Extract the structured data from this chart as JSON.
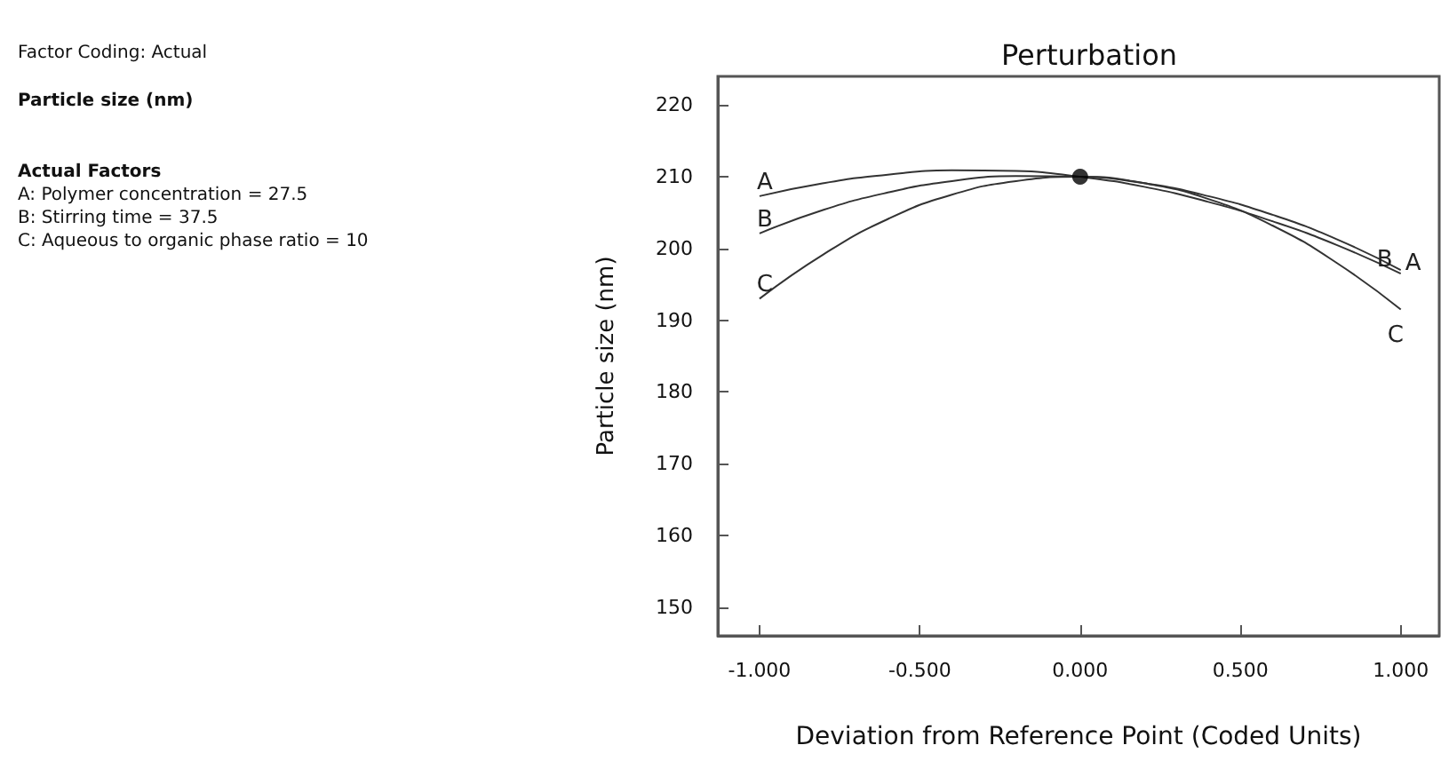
{
  "chart_data": {
    "type": "line",
    "title": "Perturbation",
    "xlabel": "Deviation from Reference Point (Coded Units)",
    "ylabel": "Particle size (nm)",
    "annotations": [
      "Factor Coding: Actual",
      "Particle size (nm)",
      "Actual Factors",
      "A: Polymer concentration = 27.5",
      "B: Stirring time = 37.5",
      "C: Aqueous to organic phase ratio = 10"
    ],
    "x": [
      -1,
      -0.8,
      -0.6,
      -0.4,
      -0.2,
      0,
      0.2,
      0.4,
      0.6,
      0.8,
      1
    ],
    "series": [
      {
        "name": "A",
        "color": "#333333",
        "values": [
          207.3,
          209.1,
          210.3,
          210.9,
          210.8,
          210,
          208.6,
          206.5,
          203.8,
          200.5,
          196.5
        ]
      },
      {
        "name": "B",
        "color": "#333333",
        "values": [
          202.1,
          205.4,
          207.8,
          209.4,
          210.1,
          210,
          209.1,
          207.3,
          204.7,
          201.3,
          197
        ]
      },
      {
        "name": "C",
        "color": "#333333",
        "values": [
          193,
          199.2,
          204.1,
          207.5,
          209.4,
          210,
          209.1,
          206.9,
          203.2,
          198,
          191.5
        ]
      },
      {
        "type": "scatter",
        "color": "#000000",
        "marker": "circle",
        "x": [
          0
        ],
        "values": [
          210
        ]
      }
    ],
    "xlim": [
      -1.13,
      1.12
    ],
    "xticks": [
      {
        "value": -1,
        "label": "-1.000"
      },
      {
        "value": -0.5,
        "label": "-0.500"
      },
      {
        "value": 0,
        "label": "0.000"
      },
      {
        "value": 0.5,
        "label": "0.500"
      },
      {
        "value": 1,
        "label": "1.000"
      }
    ],
    "ylim": [
      146,
      224
    ],
    "yticks": [
      150,
      160,
      170,
      180,
      190,
      200,
      210,
      220
    ],
    "grid": false,
    "legend": false,
    "marker": "none",
    "line_style": "solid"
  }
}
